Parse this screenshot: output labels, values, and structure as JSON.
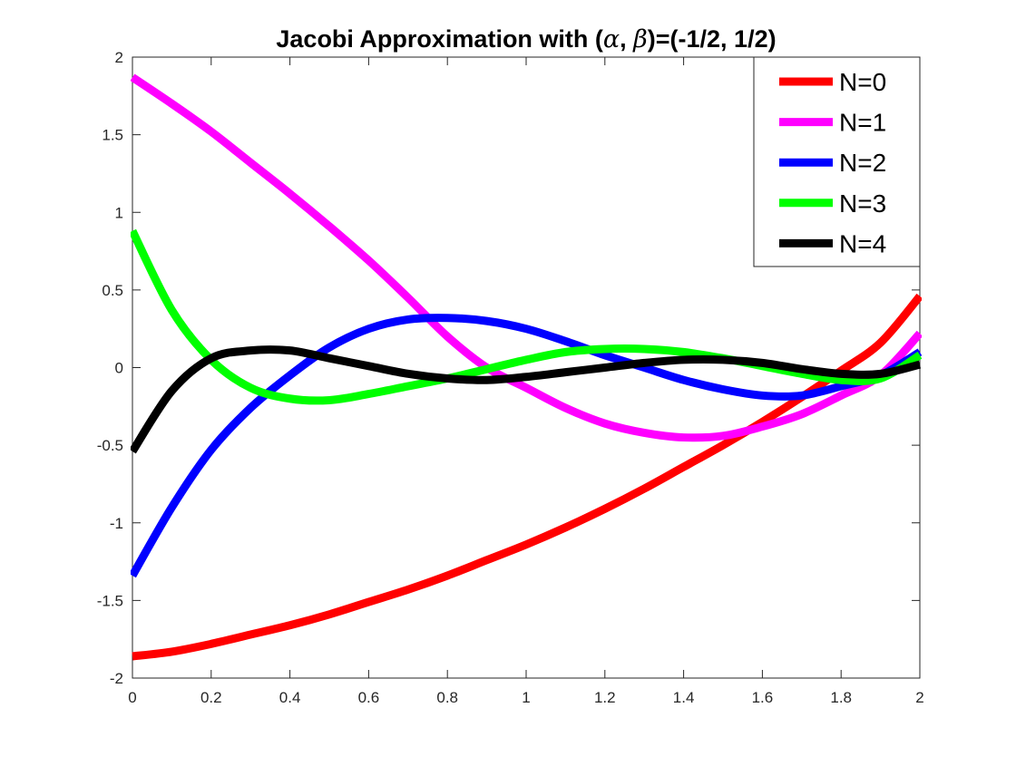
{
  "chart_data": {
    "type": "line",
    "title_parts": [
      "Jacobi Approximation with (",
      "α",
      ", ",
      "β",
      ")=(-1/2, 1/2)"
    ],
    "xlabel": "",
    "ylabel": "",
    "xlim": [
      0,
      2
    ],
    "ylim": [
      -2,
      2
    ],
    "x_ticks": [
      0,
      0.2,
      0.4,
      0.6,
      0.8,
      1,
      1.2,
      1.4,
      1.6,
      1.8,
      2
    ],
    "x_tick_labels": [
      "0",
      "0.2",
      "0.4",
      "0.6",
      "0.8",
      "1",
      "1.2",
      "1.4",
      "1.6",
      "1.8",
      "2"
    ],
    "y_ticks": [
      -2,
      -1.5,
      -1,
      -0.5,
      0,
      0.5,
      1,
      1.5,
      2
    ],
    "y_tick_labels": [
      "-2",
      "-1.5",
      "-1",
      "-0.5",
      "0",
      "0.5",
      "1",
      "1.5",
      "2"
    ],
    "grid": false,
    "legend_position": "top-right",
    "x": [
      0,
      0.1,
      0.2,
      0.3,
      0.4,
      0.5,
      0.6,
      0.7,
      0.8,
      0.9,
      1.0,
      1.1,
      1.2,
      1.3,
      1.4,
      1.5,
      1.6,
      1.7,
      1.8,
      1.9,
      2.0
    ],
    "series": [
      {
        "name": "N=0",
        "color": "#ff0000",
        "values": [
          -1.86,
          -1.83,
          -1.78,
          -1.72,
          -1.66,
          -1.59,
          -1.51,
          -1.43,
          -1.34,
          -1.24,
          -1.14,
          -1.03,
          -0.91,
          -0.78,
          -0.64,
          -0.5,
          -0.35,
          -0.19,
          -0.02,
          0.16,
          0.46
        ]
      },
      {
        "name": "N=1",
        "color": "#ff00ff",
        "values": [
          1.87,
          1.7,
          1.52,
          1.32,
          1.12,
          0.91,
          0.69,
          0.45,
          0.2,
          0.0,
          -0.13,
          -0.26,
          -0.36,
          -0.42,
          -0.45,
          -0.44,
          -0.38,
          -0.3,
          -0.18,
          -0.05,
          0.22
        ]
      },
      {
        "name": "N=2",
        "color": "#0000ff",
        "values": [
          -1.34,
          -0.9,
          -0.53,
          -0.26,
          -0.05,
          0.13,
          0.25,
          0.31,
          0.32,
          0.3,
          0.25,
          0.17,
          0.08,
          0.0,
          -0.08,
          -0.14,
          -0.18,
          -0.18,
          -0.12,
          -0.05,
          0.1
        ]
      },
      {
        "name": "N=3",
        "color": "#00ff00",
        "values": [
          0.88,
          0.37,
          0.05,
          -0.13,
          -0.2,
          -0.21,
          -0.17,
          -0.12,
          -0.07,
          -0.01,
          0.05,
          0.1,
          0.12,
          0.12,
          0.1,
          0.06,
          0.01,
          -0.04,
          -0.08,
          -0.07,
          0.08
        ]
      },
      {
        "name": "N=4",
        "color": "#000000",
        "values": [
          -0.54,
          -0.15,
          0.06,
          0.11,
          0.11,
          0.06,
          0.01,
          -0.04,
          -0.07,
          -0.08,
          -0.06,
          -0.03,
          0.0,
          0.03,
          0.05,
          0.05,
          0.03,
          -0.01,
          -0.04,
          -0.04,
          0.02
        ]
      }
    ]
  }
}
